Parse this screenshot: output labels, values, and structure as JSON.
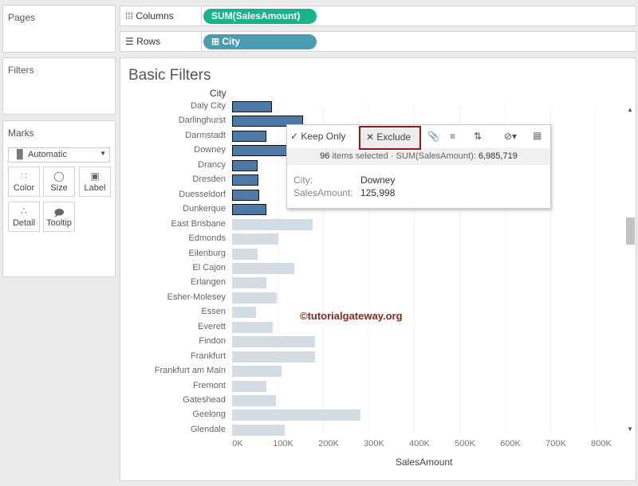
{
  "pages": {
    "title": "Pages"
  },
  "filters": {
    "title": "Filters"
  },
  "marks": {
    "title": "Marks",
    "type": "Automatic",
    "buttons": [
      "Color",
      "Size",
      "Label",
      "Detail",
      "Tooltip"
    ]
  },
  "shelves": {
    "columns_label": "Columns",
    "columns_pill": "SUM(SalesAmount)",
    "rows_label": "Rows",
    "rows_pill": "City",
    "columns_color": "#17b48c",
    "rows_color": "#4c9bb0"
  },
  "sheet": {
    "title": "Basic Filters",
    "row_header": "City",
    "x_label": "SalesAmount",
    "watermark": "©tutorialgateway.org"
  },
  "tooltip": {
    "keep_only": "Keep Only",
    "exclude": "Exclude",
    "count": "96",
    "items_selected": "items selected",
    "sum_label": "SUM(SalesAmount):",
    "sum_value": "6,985,719",
    "field1_label": "City:",
    "field1_value": "Downey",
    "field2_label": "SalesAmount:",
    "field2_value": "125,998"
  },
  "chart_data": {
    "type": "bar",
    "xlabel": "SalesAmount",
    "ylabel": "City",
    "xlim": [
      0,
      800000
    ],
    "ticks": [
      "0K",
      "100K",
      "200K",
      "300K",
      "400K",
      "500K",
      "600K",
      "700K",
      "800K"
    ],
    "categories": [
      "Daly City",
      "Darlinghurst",
      "Darmstadt",
      "Downey",
      "Drancy",
      "Dresden",
      "Duesseldorf",
      "Dunkerque",
      "East Brisbane",
      "Edmonds",
      "Eilenburg",
      "El Cajon",
      "Erlangen",
      "Esher-Molesey",
      "Essen",
      "Everett",
      "Findon",
      "Frankfurt",
      "Frankfurt am Main",
      "Fremont",
      "Gateshead",
      "Geelong",
      "Glendale"
    ],
    "values": [
      88000,
      156000,
      75000,
      125998,
      56000,
      58000,
      60000,
      75000,
      177000,
      102000,
      56000,
      137000,
      75000,
      98000,
      53000,
      89000,
      182000,
      182000,
      109000,
      75000,
      96000,
      282000,
      116000
    ],
    "selected": [
      true,
      true,
      true,
      true,
      true,
      true,
      true,
      true,
      false,
      false,
      false,
      false,
      false,
      false,
      false,
      false,
      false,
      false,
      false,
      false,
      false,
      false,
      false
    ]
  }
}
